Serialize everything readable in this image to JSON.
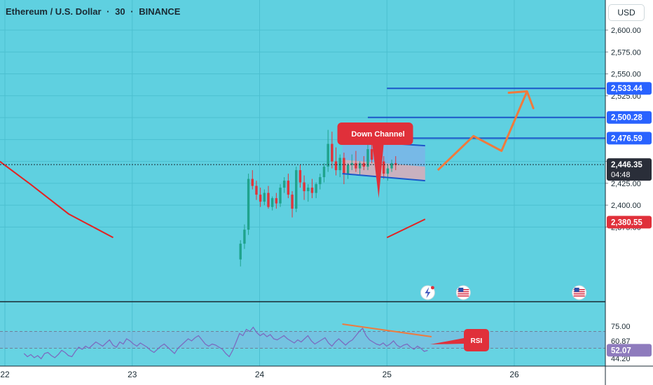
{
  "header": {
    "symbol": "Ethereum / U.S. Dollar",
    "interval": "30",
    "exchange": "BINANCE",
    "separator": "·",
    "currency": "USD"
  },
  "colors": {
    "background": "#5fd0e0",
    "up": "#1fa38c",
    "down": "#e0343a",
    "level_line": "#1c57c9",
    "projection": "#f07a3c",
    "ma": "#e32222",
    "rsi": "#7b6bc0",
    "tag_blue": "#2962ff",
    "tag_red": "#e0303a",
    "tag_dark": "#2a2e39",
    "tag_rsi": "#8e7bbd"
  },
  "chart_data": [
    {
      "type": "candlestick",
      "title": "Ethereum / U.S. Dollar · 30 · BINANCE",
      "ylim": [
        2363,
        2613
      ],
      "y_ticks": [
        "2,600.00",
        "2,575.00",
        "2,550.00",
        "2,525.00",
        "2,450.00",
        "2,425.00",
        "2,400.00",
        "2,375.00"
      ],
      "x_ticks": [
        "22",
        "23",
        "24",
        "25",
        "26"
      ],
      "price_tags": [
        {
          "label": "2,533.44",
          "value": 2533.44,
          "style": "blue"
        },
        {
          "label": "2,500.28",
          "value": 2500.28,
          "style": "blue"
        },
        {
          "label": "2,476.59",
          "value": 2476.59,
          "style": "blue"
        },
        {
          "label": "2,446.35",
          "value": 2446.35,
          "style": "dark",
          "sub": "04:48"
        },
        {
          "label": "2,380.55",
          "value": 2380.55,
          "style": "red"
        }
      ],
      "levels": [
        {
          "value": 2533.44,
          "x_from_day": 25.0
        },
        {
          "value": 2500.28,
          "x_from_day": 24.85
        },
        {
          "value": 2476.59,
          "x_from_day": 24.65
        }
      ],
      "last_price": 2446.35,
      "candles_ohlc": [
        [
          2338,
          2360,
          2330,
          2356
        ],
        [
          2356,
          2378,
          2350,
          2372
        ],
        [
          2372,
          2436,
          2366,
          2430
        ],
        [
          2430,
          2440,
          2418,
          2422
        ],
        [
          2422,
          2428,
          2406,
          2412
        ],
        [
          2412,
          2420,
          2398,
          2404
        ],
        [
          2404,
          2418,
          2400,
          2414
        ],
        [
          2414,
          2422,
          2396,
          2398
        ],
        [
          2398,
          2410,
          2394,
          2408
        ],
        [
          2408,
          2414,
          2396,
          2402
        ],
        [
          2402,
          2424,
          2398,
          2420
        ],
        [
          2420,
          2432,
          2414,
          2428
        ],
        [
          2428,
          2436,
          2408,
          2412
        ],
        [
          2412,
          2416,
          2386,
          2396
        ],
        [
          2396,
          2444,
          2392,
          2440
        ],
        [
          2440,
          2446,
          2420,
          2426
        ],
        [
          2426,
          2434,
          2406,
          2416
        ],
        [
          2416,
          2424,
          2404,
          2420
        ],
        [
          2420,
          2430,
          2408,
          2414
        ],
        [
          2414,
          2426,
          2408,
          2424
        ],
        [
          2424,
          2436,
          2418,
          2432
        ],
        [
          2432,
          2448,
          2426,
          2444
        ],
        [
          2444,
          2486,
          2438,
          2470
        ],
        [
          2470,
          2484,
          2442,
          2450
        ],
        [
          2450,
          2466,
          2434,
          2440
        ],
        [
          2440,
          2458,
          2432,
          2454
        ],
        [
          2454,
          2460,
          2424,
          2436
        ],
        [
          2436,
          2448,
          2430,
          2446
        ],
        [
          2446,
          2458,
          2440,
          2448
        ],
        [
          2448,
          2462,
          2438,
          2442
        ],
        [
          2442,
          2450,
          2434,
          2448
        ],
        [
          2448,
          2456,
          2440,
          2444
        ],
        [
          2444,
          2470,
          2440,
          2464
        ],
        [
          2464,
          2472,
          2448,
          2452
        ],
        [
          2452,
          2464,
          2440,
          2458
        ],
        [
          2458,
          2466,
          2446,
          2450
        ],
        [
          2450,
          2456,
          2430,
          2436
        ],
        [
          2436,
          2446,
          2428,
          2442
        ],
        [
          2442,
          2452,
          2438,
          2448
        ],
        [
          2448,
          2456,
          2440,
          2446
        ]
      ],
      "candles_start_day": 23.85,
      "candles_step_days": 0.03125,
      "channel": {
        "label": "Down Channel",
        "start_day": 24.65,
        "end_day": 25.3,
        "upper": [
          2474,
          2468
        ],
        "lower": [
          2436,
          2428
        ],
        "mid": [
          2452,
          2444
        ]
      },
      "projection_path": [
        [
          25.4,
          2440
        ],
        [
          25.68,
          2479
        ],
        [
          25.9,
          2462
        ],
        [
          26.1,
          2530
        ]
      ],
      "ma_line": [
        [
          21.96,
          2450
        ],
        [
          22.2,
          2424
        ],
        [
          22.5,
          2390
        ],
        [
          22.85,
          2363
        ]
      ],
      "ma_line_2": [
        [
          25.0,
          2363
        ],
        [
          25.3,
          2384
        ]
      ],
      "event_icons": [
        {
          "day": 25.32,
          "name": "lightning-event-icon"
        },
        {
          "day": 25.6,
          "name": "us-flag-icon"
        },
        {
          "day": 26.51,
          "name": "us-flag-icon"
        }
      ]
    },
    {
      "type": "line",
      "name": "RSI",
      "ylim": [
        44.2,
        85
      ],
      "y_ticks": [
        "75.00",
        "44.20"
      ],
      "tags": [
        {
          "label": "60.87",
          "value": 60.87,
          "style": "plain"
        },
        {
          "label": "52.07",
          "value": 52.07,
          "style": "rsi"
        }
      ],
      "bands": [
        70,
        54
      ],
      "callout": "RSI",
      "values": [
        49,
        46,
        48,
        45,
        47,
        44,
        49,
        50,
        47,
        45,
        48,
        52,
        50,
        47,
        46,
        51,
        55,
        53,
        56,
        54,
        57,
        60,
        58,
        56,
        59,
        62,
        57,
        55,
        60,
        58,
        63,
        61,
        58,
        56,
        59,
        57,
        55,
        52,
        50,
        53,
        56,
        58,
        55,
        52,
        49,
        54,
        57,
        60,
        63,
        61,
        64,
        66,
        62,
        58,
        56,
        58,
        57,
        55,
        53,
        49,
        46,
        52,
        60,
        68,
        66,
        72,
        70,
        74,
        69,
        66,
        68,
        65,
        67,
        63,
        62,
        64,
        66,
        63,
        61,
        59,
        62,
        60,
        63,
        66,
        61,
        58,
        60,
        62,
        64,
        59,
        56,
        60,
        63,
        60,
        57,
        60,
        62,
        66,
        70,
        73,
        66,
        62,
        60,
        58,
        57,
        59,
        56,
        58,
        61,
        57,
        55,
        57,
        58,
        55,
        53,
        56,
        54,
        51,
        52
      ],
      "x_start_day": 22.15,
      "x_end_day": 25.32,
      "trend_line": [
        [
          24.65,
          77
        ],
        [
          25.35,
          65
        ]
      ]
    }
  ]
}
